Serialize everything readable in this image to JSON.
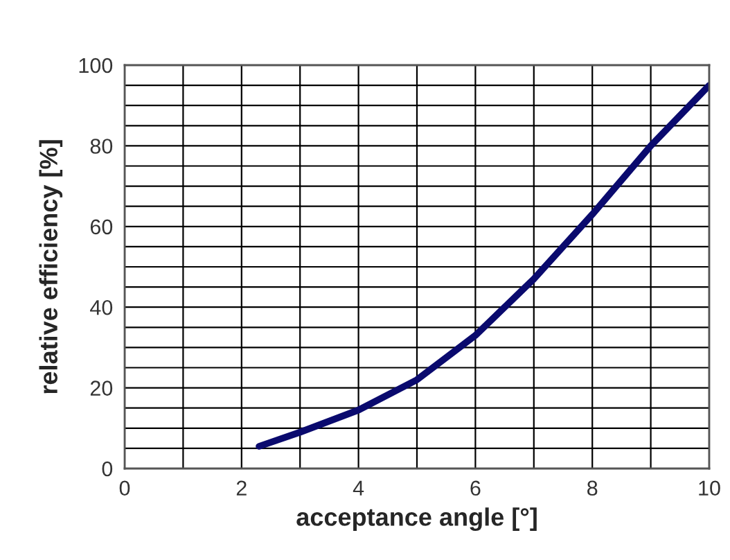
{
  "chart_data": {
    "type": "line",
    "xlabel": "acceptance angle [°]",
    "ylabel": "relative efficiency [%]",
    "x": [
      2.3,
      3,
      4,
      5,
      6,
      7,
      8,
      9,
      10
    ],
    "series": [
      {
        "color": "#0a0a6e",
        "values": [
          5.5,
          9,
          14.5,
          22,
          33,
          47,
          63,
          80,
          95
        ]
      }
    ],
    "xlim": [
      0,
      10
    ],
    "ylim": [
      0,
      100
    ],
    "xticks": [
      0,
      {
        "value": 1,
        "label": null
      },
      2,
      {
        "value": 3,
        "label": null
      },
      4,
      {
        "value": 5,
        "label": null
      },
      6,
      {
        "value": 7,
        "label": null
      },
      8,
      {
        "value": 9,
        "label": null
      },
      10
    ],
    "yticks": [
      0,
      {
        "value": 5,
        "label": null
      },
      {
        "value": 10,
        "label": null
      },
      {
        "value": 15,
        "label": null
      },
      20,
      {
        "value": 25,
        "label": null
      },
      {
        "value": 30,
        "label": null
      },
      {
        "value": 35,
        "label": null
      },
      40,
      {
        "value": 45,
        "label": null
      },
      {
        "value": 50,
        "label": null
      },
      {
        "value": 55,
        "label": null
      },
      60,
      {
        "value": 65,
        "label": null
      },
      {
        "value": 70,
        "label": null
      },
      {
        "value": 75,
        "label": null
      },
      80,
      {
        "value": 85,
        "label": null
      },
      {
        "value": 90,
        "label": null
      },
      {
        "value": 95,
        "label": null
      },
      100
    ],
    "grid": true,
    "marker": "none",
    "line_style": "solid"
  }
}
